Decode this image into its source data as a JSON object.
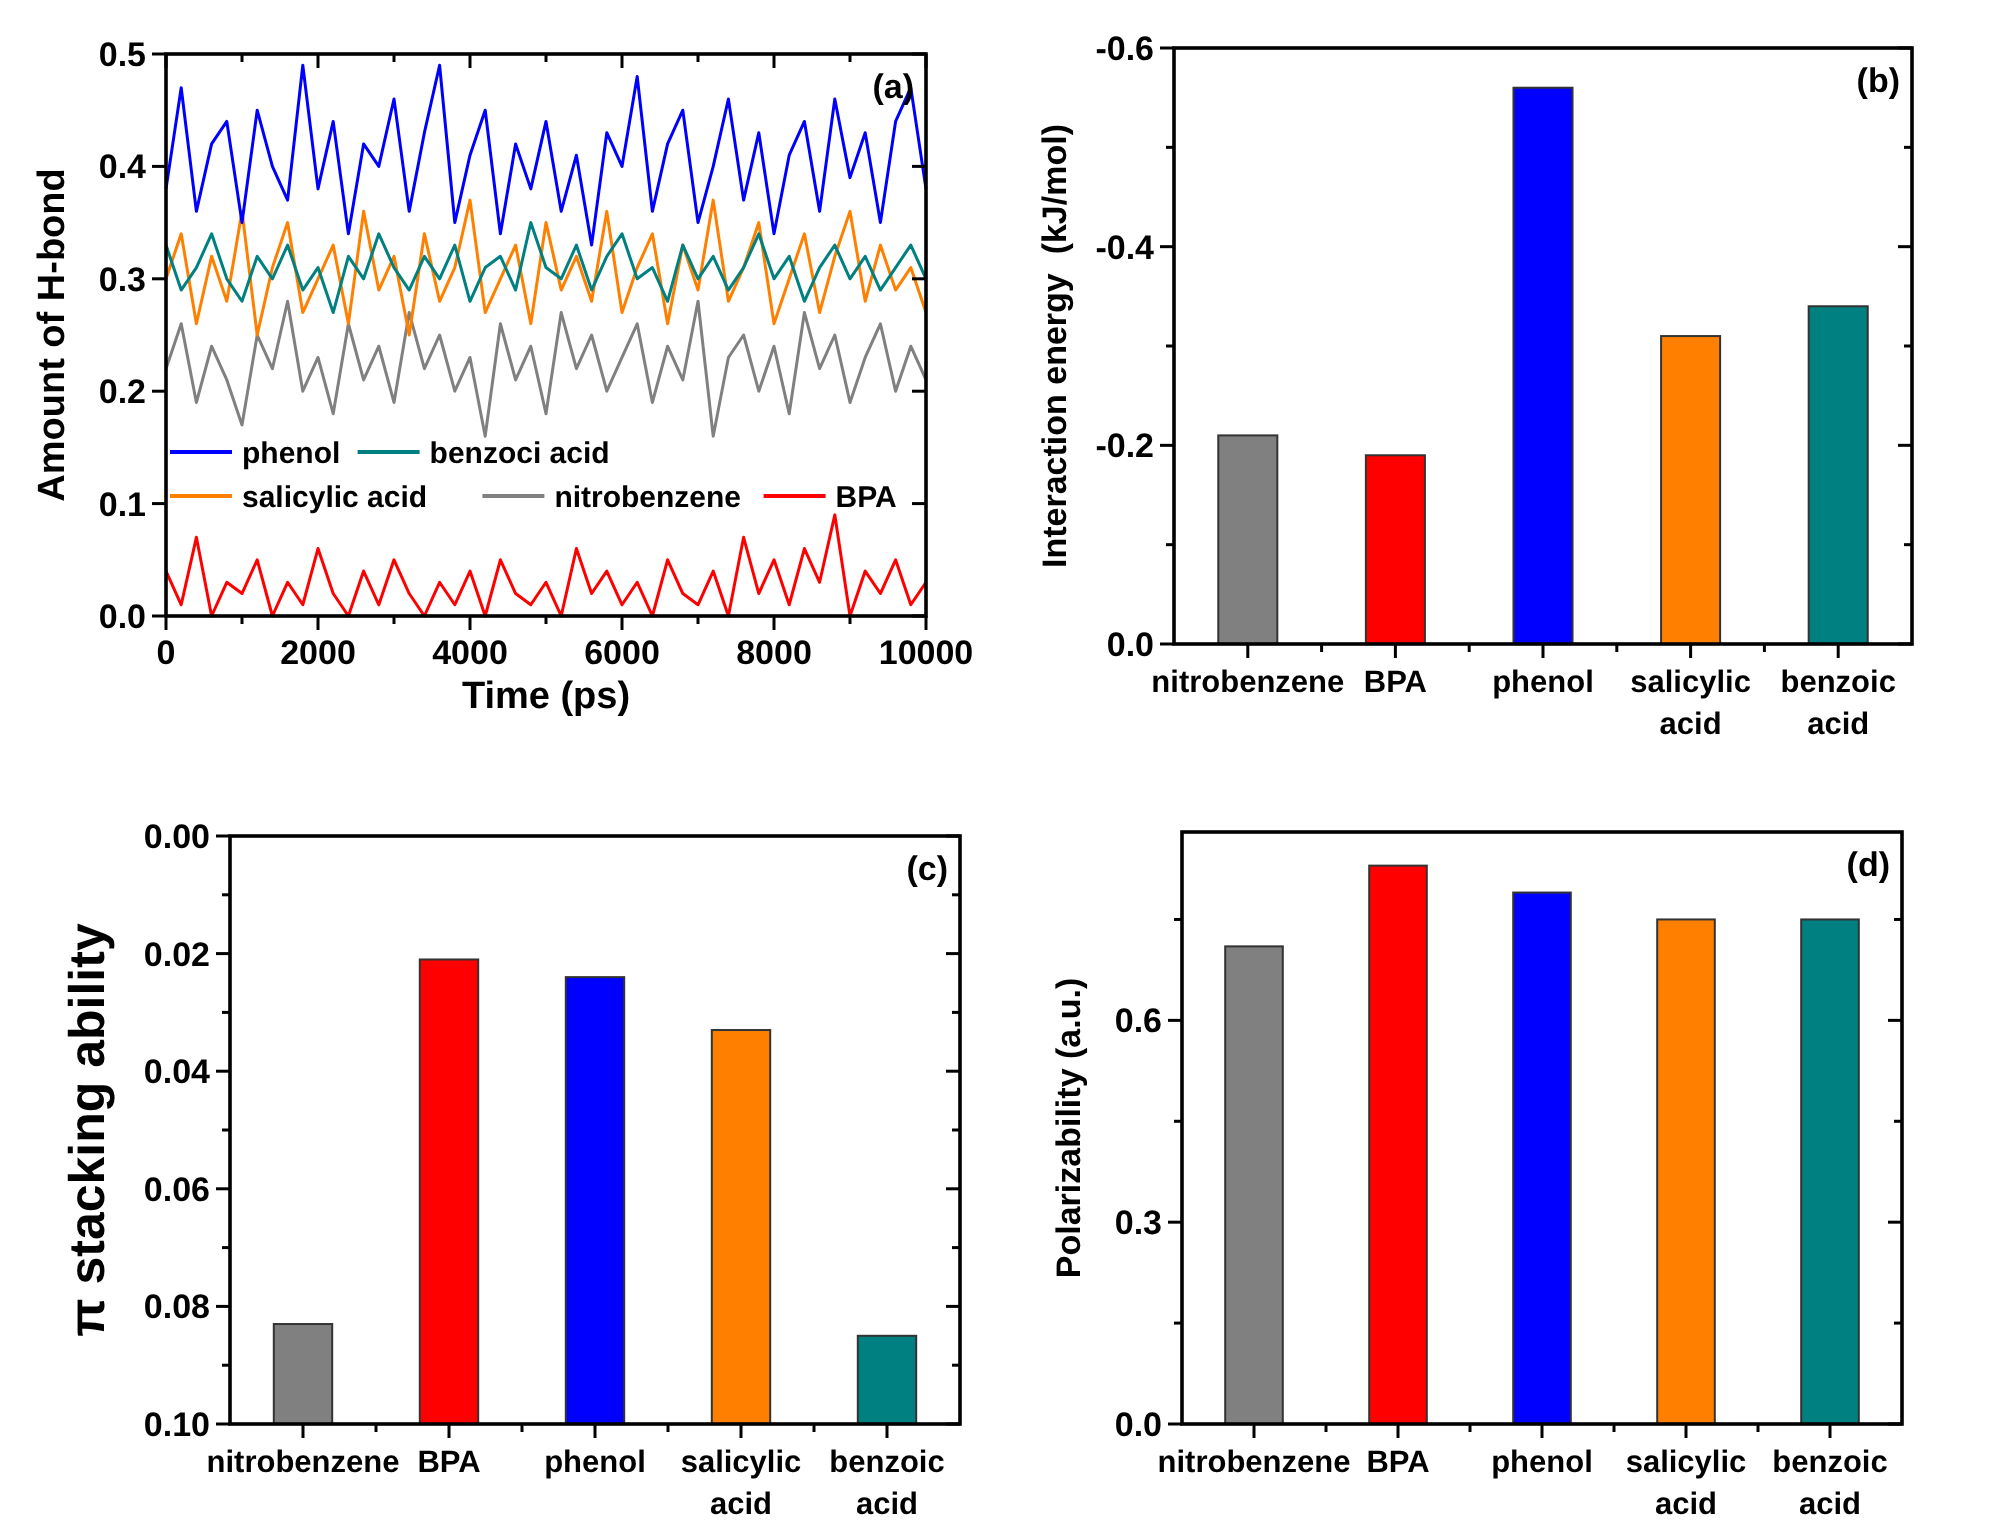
{
  "chart_data": [
    {
      "type": "line",
      "xlabel": "Time (ps)",
      "ylabel": "Amount of H-bond",
      "annotations": [
        "(a)"
      ],
      "legend": "bottom",
      "x": [
        0,
        200,
        400,
        600,
        800,
        1000,
        1200,
        1400,
        1600,
        1800,
        2000,
        2200,
        2400,
        2600,
        2800,
        3000,
        3200,
        3400,
        3600,
        3800,
        4000,
        4200,
        4400,
        4600,
        4800,
        5000,
        5200,
        5400,
        5600,
        5800,
        6000,
        6200,
        6400,
        6600,
        6800,
        7000,
        7200,
        7400,
        7600,
        7800,
        8000,
        8200,
        8400,
        8600,
        8800,
        9000,
        9200,
        9400,
        9600,
        9800,
        10000
      ],
      "xlim": [
        0,
        10000
      ],
      "xticks": [
        0,
        {
          "value": 1000,
          "label": null
        },
        2000,
        {
          "value": 3000,
          "label": null
        },
        4000,
        {
          "value": 5000,
          "label": null
        },
        6000,
        {
          "value": 7000,
          "label": null
        },
        8000,
        {
          "value": 9000,
          "label": null
        },
        10000
      ],
      "ylim": [
        0,
        0.5
      ],
      "yticks": [
        {
          "value": 0,
          "label": "0.0"
        },
        0.1,
        0.2,
        0.3,
        0.4,
        0.5
      ],
      "series": [
        {
          "name": "phenol",
          "color": "#0000ff",
          "values": [
            0.38,
            0.47,
            0.36,
            0.42,
            0.44,
            0.35,
            0.45,
            0.4,
            0.37,
            0.49,
            0.38,
            0.44,
            0.34,
            0.42,
            0.4,
            0.46,
            0.36,
            0.43,
            0.49,
            0.35,
            0.41,
            0.45,
            0.34,
            0.42,
            0.38,
            0.44,
            0.36,
            0.41,
            0.33,
            0.43,
            0.4,
            0.48,
            0.36,
            0.42,
            0.45,
            0.35,
            0.4,
            0.46,
            0.37,
            0.43,
            0.34,
            0.41,
            0.44,
            0.36,
            0.46,
            0.39,
            0.43,
            0.35,
            0.44,
            0.47,
            0.38
          ]
        },
        {
          "name": "benzoci acid",
          "color": "#008080",
          "values": [
            0.33,
            0.29,
            0.31,
            0.34,
            0.3,
            0.28,
            0.32,
            0.3,
            0.33,
            0.29,
            0.31,
            0.27,
            0.32,
            0.3,
            0.34,
            0.31,
            0.29,
            0.32,
            0.3,
            0.33,
            0.28,
            0.31,
            0.32,
            0.29,
            0.35,
            0.31,
            0.3,
            0.33,
            0.29,
            0.32,
            0.34,
            0.3,
            0.31,
            0.28,
            0.33,
            0.3,
            0.32,
            0.29,
            0.31,
            0.34,
            0.3,
            0.32,
            0.28,
            0.31,
            0.33,
            0.3,
            0.32,
            0.29,
            0.31,
            0.33,
            0.3
          ]
        },
        {
          "name": "salicylic acid",
          "color": "#ff8000",
          "values": [
            0.3,
            0.34,
            0.26,
            0.32,
            0.28,
            0.36,
            0.25,
            0.31,
            0.35,
            0.27,
            0.3,
            0.33,
            0.26,
            0.36,
            0.29,
            0.32,
            0.25,
            0.34,
            0.28,
            0.31,
            0.37,
            0.27,
            0.3,
            0.33,
            0.26,
            0.35,
            0.29,
            0.32,
            0.28,
            0.36,
            0.27,
            0.31,
            0.34,
            0.26,
            0.33,
            0.29,
            0.37,
            0.28,
            0.31,
            0.35,
            0.26,
            0.3,
            0.34,
            0.27,
            0.32,
            0.36,
            0.28,
            0.33,
            0.29,
            0.31,
            0.27
          ]
        },
        {
          "name": "nitrobenzene",
          "color": "#808080",
          "values": [
            0.22,
            0.26,
            0.19,
            0.24,
            0.21,
            0.17,
            0.25,
            0.22,
            0.28,
            0.2,
            0.23,
            0.18,
            0.26,
            0.21,
            0.24,
            0.19,
            0.27,
            0.22,
            0.25,
            0.2,
            0.23,
            0.16,
            0.26,
            0.21,
            0.24,
            0.18,
            0.27,
            0.22,
            0.25,
            0.2,
            0.23,
            0.26,
            0.19,
            0.24,
            0.21,
            0.28,
            0.16,
            0.23,
            0.25,
            0.2,
            0.24,
            0.18,
            0.27,
            0.22,
            0.25,
            0.19,
            0.23,
            0.26,
            0.2,
            0.24,
            0.21
          ]
        },
        {
          "name": "BPA",
          "color": "#ff0000",
          "values": [
            0.04,
            0.01,
            0.07,
            0.0,
            0.03,
            0.02,
            0.05,
            0.0,
            0.03,
            0.01,
            0.06,
            0.02,
            0.0,
            0.04,
            0.01,
            0.05,
            0.02,
            0.0,
            0.03,
            0.01,
            0.04,
            0.0,
            0.05,
            0.02,
            0.01,
            0.03,
            0.0,
            0.06,
            0.02,
            0.04,
            0.01,
            0.03,
            0.0,
            0.05,
            0.02,
            0.01,
            0.04,
            0.0,
            0.07,
            0.02,
            0.05,
            0.01,
            0.06,
            0.03,
            0.09,
            0.0,
            0.04,
            0.02,
            0.05,
            0.01,
            0.03
          ]
        }
      ]
    },
    {
      "type": "bar",
      "ylabel": "Interaction energy  (kJ/mol)",
      "annotations": [
        "(b)"
      ],
      "categories": [
        "nitrobenzene",
        "BPA",
        "phenol",
        "salicylic acid",
        "benzoic acid"
      ],
      "values": [
        -0.21,
        -0.19,
        -0.56,
        -0.31,
        -0.34
      ],
      "colors": [
        "#808080",
        "#ff0000",
        "#0000ff",
        "#ff8000",
        "#008080"
      ],
      "ylim": [
        0,
        -0.6
      ],
      "yticks": [
        {
          "value": 0,
          "label": "0.0"
        },
        {
          "value": -0.1,
          "label": null
        },
        -0.2,
        {
          "value": -0.3,
          "label": null
        },
        -0.4,
        {
          "value": -0.5,
          "label": null
        },
        -0.6
      ]
    },
    {
      "type": "bar",
      "ylabel": "π stacking ability",
      "annotations": [
        "(c)"
      ],
      "categories": [
        "nitrobenzene",
        "BPA",
        "phenol",
        "salicylic acid",
        "benzoic acid"
      ],
      "base": [
        0.1,
        0.1,
        0.1,
        0.1,
        0.1
      ],
      "values": [
        -0.017,
        -0.079,
        -0.076,
        -0.067,
        -0.015
      ],
      "colors": [
        "#808080",
        "#ff0000",
        "#0000ff",
        "#ff8000",
        "#008080"
      ],
      "ylim": [
        0.1,
        0
      ],
      "yticks": [
        {
          "value": 0,
          "label": "0.00"
        },
        {
          "value": 0.01,
          "label": null
        },
        {
          "value": 0.02,
          "label": "0.02"
        },
        {
          "value": 0.03,
          "label": null
        },
        {
          "value": 0.04,
          "label": "0.04"
        },
        {
          "value": 0.05,
          "label": null
        },
        {
          "value": 0.06,
          "label": "0.06"
        },
        {
          "value": 0.07,
          "label": null
        },
        {
          "value": 0.08,
          "label": "0.08"
        },
        {
          "value": 0.09,
          "label": null
        },
        {
          "value": 0.1,
          "label": "0.10"
        }
      ]
    },
    {
      "type": "bar",
      "ylabel": "Polarizability (a.u.)",
      "annotations": [
        "(d)"
      ],
      "categories": [
        "nitrobenzene",
        "BPA",
        "phenol",
        "salicylic acid",
        "benzoic acid"
      ],
      "values": [
        0.71,
        0.83,
        0.79,
        0.75,
        0.75
      ],
      "colors": [
        "#808080",
        "#ff0000",
        "#0000ff",
        "#ff8000",
        "#008080"
      ],
      "ylim": [
        0,
        0.88
      ],
      "yticks": [
        {
          "value": 0,
          "label": "0.0"
        },
        {
          "value": 0.15,
          "label": null
        },
        0.3,
        {
          "value": 0.45,
          "label": null
        },
        0.6,
        {
          "value": 0.75,
          "label": null
        }
      ]
    }
  ]
}
